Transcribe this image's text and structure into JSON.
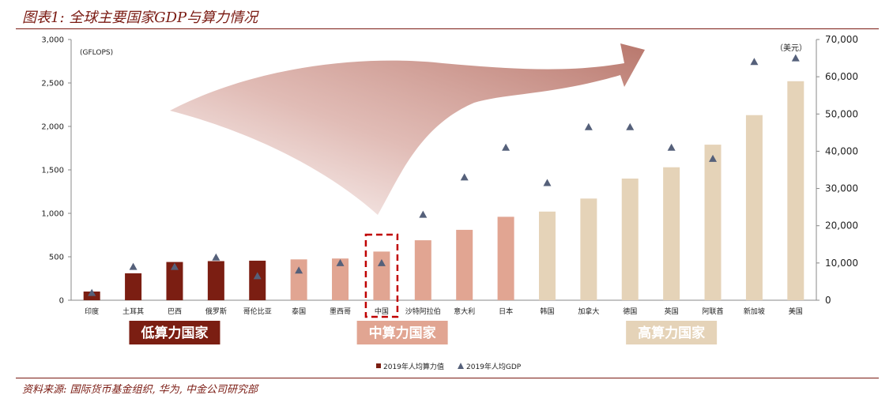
{
  "title": "图表1: 全球主要国家GDP与算力情况",
  "source": "资料来源: 国际货币基金组织, 华为, 中金公司研究部",
  "chart_data": {
    "type": "bar",
    "categories": [
      "印度",
      "土耳其",
      "巴西",
      "俄罗斯",
      "哥伦比亚",
      "泰国",
      "墨西哥",
      "中国",
      "沙特阿拉伯",
      "意大利",
      "日本",
      "韩国",
      "加拿大",
      "德国",
      "英国",
      "阿联酋",
      "新加坡",
      "美国"
    ],
    "series": [
      {
        "name": "2019年人均算力值",
        "axis": "left",
        "values": [
          100,
          310,
          440,
          450,
          455,
          470,
          480,
          560,
          690,
          810,
          960,
          1020,
          1170,
          1400,
          1530,
          1790,
          2130,
          2520
        ]
      },
      {
        "name": "2019年人均GDP",
        "axis": "right",
        "values": [
          2000,
          9000,
          9000,
          11500,
          6500,
          8000,
          10000,
          10000,
          23000,
          33000,
          41000,
          31500,
          46500,
          46500,
          41000,
          38000,
          64000,
          65000
        ]
      }
    ],
    "group_of_category": [
      0,
      0,
      0,
      0,
      0,
      1,
      1,
      1,
      1,
      1,
      1,
      2,
      2,
      2,
      2,
      2,
      2,
      2
    ],
    "highlighted_category": "中国",
    "y_left": {
      "unit": "(GFLOPS)",
      "ylim": [
        0,
        3000
      ],
      "ticks": [
        "0",
        "500",
        "1,000",
        "1,500",
        "2,000",
        "2,500",
        "3,000"
      ]
    },
    "y_right": {
      "unit": "（美元）",
      "ylim": [
        0,
        70000
      ],
      "ticks": [
        "0",
        "10,000",
        "20,000",
        "30,000",
        "40,000",
        "50,000",
        "60,000",
        "70,000"
      ]
    },
    "groups": [
      {
        "label": "低算力国家",
        "color": "#7b1e12",
        "text_color": "#ffffff"
      },
      {
        "label": "中算力国家",
        "color": "#e1a592",
        "text_color": "#ffffff"
      },
      {
        "label": "高算力国家",
        "color": "#e5d3b8",
        "text_color": "#ffffff"
      }
    ],
    "marker_color": "#55607a",
    "legend": {
      "position": "bottom-right"
    },
    "grid": false
  }
}
